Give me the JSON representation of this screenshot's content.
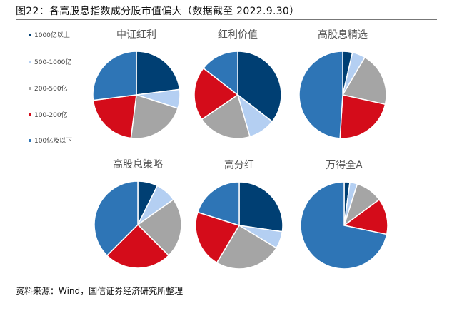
{
  "title": "图22：各高股息指数成分股市值偏大（数据截至 2022.9.30）",
  "source": "资料来源：Wind，国信证券经济研究所整理",
  "chart_data": [
    {
      "type": "pie",
      "title": "中证红利",
      "categories": [
        "1000亿以上",
        "500-1000亿",
        "200-500亿",
        "100-200亿",
        "100亿及以下"
      ],
      "values": [
        23,
        7,
        22,
        21,
        27
      ]
    },
    {
      "type": "pie",
      "title": "红利价值",
      "categories": [
        "1000亿以上",
        "500-1000亿",
        "200-500亿",
        "100-200亿",
        "100亿及以下"
      ],
      "values": [
        35.5,
        10,
        20,
        20,
        14.5
      ]
    },
    {
      "type": "pie",
      "title": "高股息精选",
      "categories": [
        "1000亿以上",
        "500-1000亿",
        "200-500亿",
        "100-200亿",
        "100亿及以下"
      ],
      "values": [
        3.6,
        4.9,
        20,
        22.5,
        49
      ]
    },
    {
      "type": "pie",
      "title": "高股息策略",
      "categories": [
        "1000亿以上",
        "500-1000亿",
        "200-500亿",
        "100-200亿",
        "100亿及以下"
      ],
      "values": [
        7.4,
        7.8,
        22.3,
        25,
        37.5
      ]
    },
    {
      "type": "pie",
      "title": "高分红",
      "categories": [
        "1000亿以上",
        "500-1000亿",
        "200-500亿",
        "100-200亿",
        "100亿及以下"
      ],
      "values": [
        27.3,
        6.4,
        24.9,
        21.3,
        20.1
      ]
    },
    {
      "type": "pie",
      "title": "万得全A",
      "categories": [
        "1000亿以上",
        "500-1000亿",
        "200-500亿",
        "100-200亿",
        "100亿及以下"
      ],
      "values": [
        2.1,
        2.8,
        10,
        13.4,
        71.7
      ]
    }
  ],
  "legend": {
    "placement": "left",
    "items": [
      "1000亿以上",
      "500-1000亿",
      "200-500亿",
      "100-200亿",
      "100亿及以下"
    ]
  },
  "colors": [
    "#003f73",
    "#b4cff2",
    "#a5a5a5",
    "#d40c1a",
    "#2e75b6"
  ]
}
